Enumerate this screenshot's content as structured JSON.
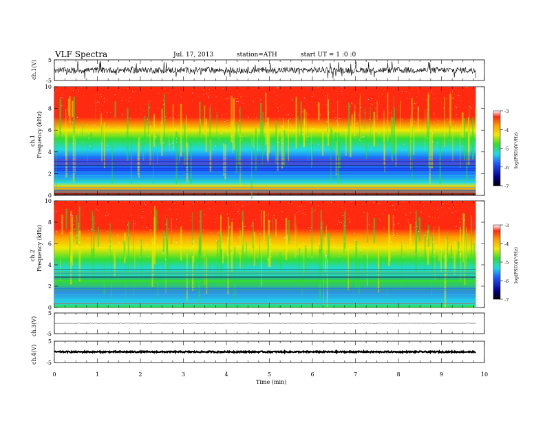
{
  "header": {
    "title": "VLF  Spectra",
    "date": "Jul.  17,  2013",
    "station": "station=ATH",
    "start": "start  UT  =   1  :0  :0"
  },
  "colors": {
    "red": "#ff2a10",
    "orange": "#ffa000",
    "yellow": "#f2e800",
    "green": "#33dd33",
    "cyan": "#20d8e8",
    "blue": "#1f5cff",
    "darkblue": "#050090",
    "black": "#000000"
  },
  "chart_data": [
    {
      "type": "line",
      "name": "ch1_waveform",
      "ylabel": "ch.1(V)",
      "ylim": [
        -5,
        5
      ],
      "y_tick_labels": [
        "5",
        "-5"
      ],
      "x_range_min": [
        0,
        9.8
      ],
      "description_values": {
        "mean": 0,
        "amplitude_typical": 1.5,
        "amplitude_peaks": 4.5
      }
    },
    {
      "type": "heatmap",
      "name": "ch1_spectrogram",
      "ylabel": "Frequency  (kHz)",
      "channel_label": "ch.1",
      "ylim": [
        0,
        10
      ],
      "y_ticks": [
        "0",
        "2",
        "4",
        "6",
        "8",
        "10"
      ],
      "x_range_min": [
        0,
        9.8
      ],
      "colorbar": {
        "label": "log(PSD)(V²/Hz)",
        "range": [
          -7,
          -3
        ],
        "ticks": [
          "-3",
          "-4",
          "-5",
          "-6",
          "-7"
        ]
      },
      "bands_khz_log_psd": [
        {
          "from": 0.0,
          "to": 0.3,
          "value": -6.8
        },
        {
          "from": 0.3,
          "to": 0.8,
          "value": -3.8
        },
        {
          "from": 0.8,
          "to": 2.0,
          "value": -5.3
        },
        {
          "from": 2.0,
          "to": 3.7,
          "value": -6.0
        },
        {
          "from": 3.7,
          "to": 5.0,
          "value": -5.2
        },
        {
          "from": 5.0,
          "to": 6.5,
          "value": -4.6
        },
        {
          "from": 6.5,
          "to": 10.0,
          "value": -3.3
        }
      ]
    },
    {
      "type": "heatmap",
      "name": "ch2_spectrogram",
      "ylabel": "Frequency  (kHz)",
      "channel_label": "ch.2",
      "ylim": [
        0,
        10
      ],
      "y_ticks": [
        "0",
        "2",
        "4",
        "6",
        "8",
        "10"
      ],
      "x_range_min": [
        0,
        9.8
      ],
      "colorbar": {
        "label": "log(PSD)(V²/Hz)",
        "range": [
          -7,
          -3
        ],
        "ticks": [
          "-3",
          "-4",
          "-5",
          "-6",
          "-7"
        ]
      },
      "bands_khz_log_psd": [
        {
          "from": 0.0,
          "to": 0.4,
          "value": -5.0
        },
        {
          "from": 0.4,
          "to": 2.5,
          "value": -5.6
        },
        {
          "from": 2.5,
          "to": 3.6,
          "value": -5.2
        },
        {
          "from": 3.6,
          "to": 5.0,
          "value": -4.9
        },
        {
          "from": 5.0,
          "to": 6.5,
          "value": -4.4
        },
        {
          "from": 6.5,
          "to": 10.0,
          "value": -3.3
        }
      ]
    },
    {
      "type": "line",
      "name": "ch3_waveform",
      "ylabel": "ch.3(V)",
      "ylim": [
        -5,
        5
      ],
      "y_tick_labels": [
        "5",
        "-5"
      ],
      "x_range_min": [
        0,
        9.8
      ],
      "description_values": {
        "mean": 0,
        "amplitude_typical": 0.1
      }
    },
    {
      "type": "line",
      "name": "ch4_waveform",
      "ylabel": "ch.4(V)",
      "ylim": [
        -5,
        5
      ],
      "y_tick_labels": [
        "5",
        "-5"
      ],
      "x_range_min": [
        0,
        9.8
      ],
      "description_values": {
        "mean": 0,
        "amplitude_typical": 0.3
      }
    }
  ],
  "xaxis": {
    "label": "Time  (min)",
    "range": [
      0,
      10
    ],
    "ticks": [
      "0",
      "1",
      "2",
      "3",
      "4",
      "5",
      "6",
      "7",
      "8",
      "9",
      "10"
    ]
  }
}
